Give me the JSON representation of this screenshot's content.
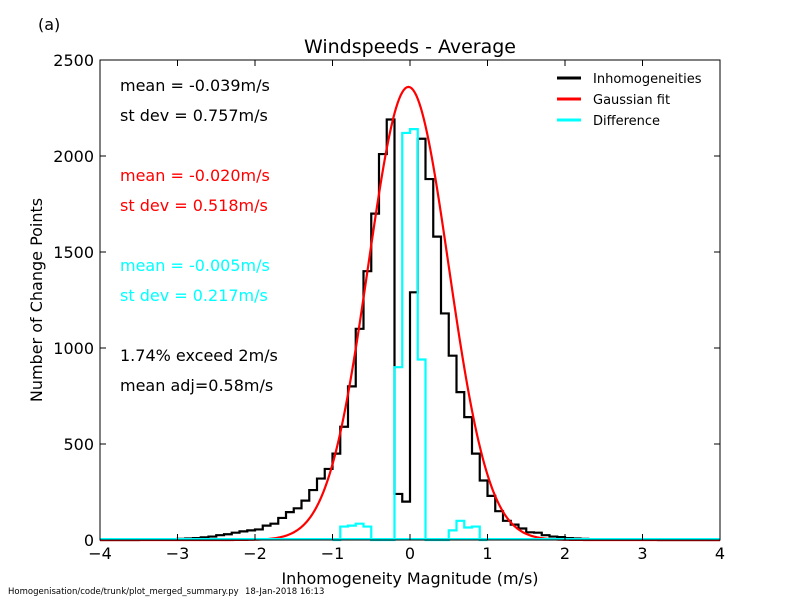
{
  "panel_label": "(a)",
  "footer": {
    "path": "Homogenisation/code/trunk/plot_merged_summary.py",
    "timestamp": "18-Jan-2018 16:13"
  },
  "colors": {
    "inhomogeneities": "#000000",
    "gaussian": "#ff0000",
    "difference": "#00ffff"
  },
  "annotations": [
    {
      "text": "mean = -0.039m/s",
      "color": "#000000"
    },
    {
      "text": "st dev =  0.757m/s",
      "color": "#000000"
    },
    {
      "text": "mean = -0.020m/s",
      "color": "#ff0000"
    },
    {
      "text": "st dev =  0.518m/s",
      "color": "#ff0000"
    },
    {
      "text": "mean = -0.005m/s",
      "color": "#00ffff"
    },
    {
      "text": "st dev =  0.217m/s",
      "color": "#00ffff"
    },
    {
      "text": "1.74% exceed 2m/s",
      "color": "#000000"
    },
    {
      "text": "mean adj=0.58m/s",
      "color": "#000000"
    }
  ],
  "chart_data": {
    "type": "line",
    "title": "Windspeeds - Average",
    "xlabel": "Inhomogeneity Magnitude (m/s)",
    "ylabel": "Number of Change Points",
    "xlim": [
      -4,
      4
    ],
    "ylim": [
      0,
      2500
    ],
    "xticks": [
      -4,
      -3,
      -2,
      -1,
      0,
      1,
      2,
      3,
      4
    ],
    "yticks": [
      0,
      500,
      1000,
      1500,
      2000,
      2500
    ],
    "legend_position": "top-right",
    "bin_width": 0.1,
    "series": [
      {
        "name": "Inhomogeneities",
        "style": "step",
        "x": [
          -4.0,
          -3.9,
          -3.8,
          -3.7,
          -3.6,
          -3.5,
          -3.4,
          -3.3,
          -3.2,
          -3.1,
          -3.0,
          -2.9,
          -2.8,
          -2.7,
          -2.6,
          -2.5,
          -2.4,
          -2.3,
          -2.2,
          -2.1,
          -2.0,
          -1.9,
          -1.8,
          -1.7,
          -1.6,
          -1.5,
          -1.4,
          -1.3,
          -1.2,
          -1.1,
          -1.0,
          -0.9,
          -0.8,
          -0.7,
          -0.6,
          -0.5,
          -0.4,
          -0.3,
          -0.2,
          -0.1,
          0.0,
          0.1,
          0.2,
          0.3,
          0.4,
          0.5,
          0.6,
          0.7,
          0.8,
          0.9,
          1.0,
          1.1,
          1.2,
          1.3,
          1.4,
          1.5,
          1.6,
          1.7,
          1.8,
          1.9,
          2.0,
          2.1,
          2.2,
          2.3,
          2.4,
          2.5,
          2.6,
          2.7,
          2.8,
          2.9,
          3.0,
          3.1,
          3.2,
          3.3,
          3.4,
          3.5,
          3.6,
          3.7,
          3.8,
          3.9
        ],
        "values": [
          0,
          0,
          0,
          0,
          0,
          1,
          2,
          3,
          4,
          5,
          6,
          8,
          10,
          14,
          18,
          25,
          30,
          38,
          45,
          50,
          55,
          75,
          85,
          115,
          145,
          165,
          205,
          260,
          320,
          370,
          450,
          590,
          800,
          1100,
          1400,
          1700,
          2010,
          2190,
          240,
          200,
          1290,
          2090,
          1880,
          1580,
          1180,
          960,
          770,
          640,
          450,
          310,
          230,
          150,
          100,
          80,
          60,
          40,
          38,
          25,
          18,
          15,
          10,
          8,
          6,
          5,
          3,
          3,
          2,
          2,
          1,
          1,
          1,
          1,
          0,
          0,
          0,
          0,
          0,
          0,
          0,
          0
        ]
      },
      {
        "name": "Gaussian fit",
        "style": "line",
        "mean": -0.02,
        "stdev": 0.518,
        "peak": 2360
      },
      {
        "name": "Difference",
        "style": "step",
        "x": [
          -1.0,
          -0.9,
          -0.8,
          -0.7,
          -0.6,
          -0.5,
          -0.4,
          -0.3,
          -0.2,
          -0.1,
          0.0,
          0.1,
          0.2,
          0.3,
          0.4,
          0.5,
          0.6,
          0.7,
          0.8,
          0.9
        ],
        "values": [
          0,
          70,
          75,
          85,
          70,
          0,
          0,
          0,
          900,
          2120,
          2140,
          940,
          0,
          0,
          0,
          50,
          100,
          65,
          70,
          0
        ]
      }
    ]
  }
}
